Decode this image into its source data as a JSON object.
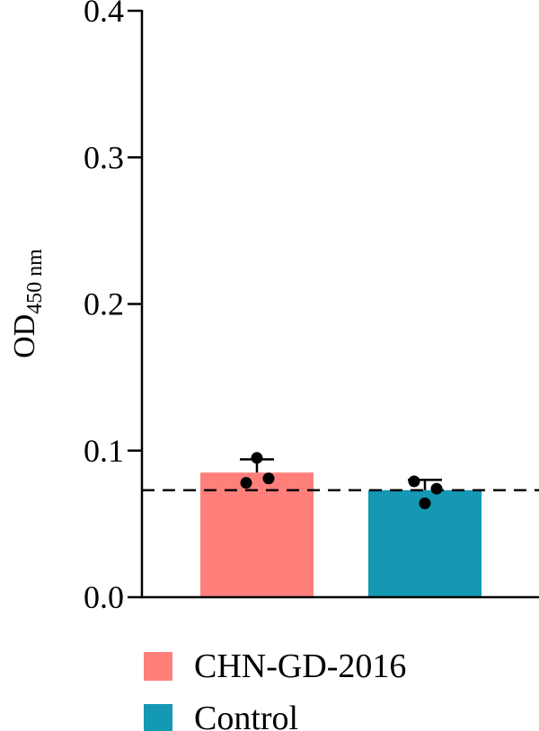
{
  "chart_data": {
    "type": "bar",
    "title": "",
    "xlabel": "",
    "ylabel_main": "OD",
    "ylabel_sub": "450 nm",
    "ylim": [
      0,
      0.4
    ],
    "yticks": [
      0.0,
      0.1,
      0.2,
      0.3,
      0.4
    ],
    "ytick_labels": [
      "0.0",
      "0.1",
      "0.2",
      "0.3",
      "0.4"
    ],
    "categories": [
      "CHN-GD-2016",
      "Control"
    ],
    "values": [
      0.085,
      0.073
    ],
    "error_upper": [
      0.094,
      0.08
    ],
    "points": [
      [
        0.078,
        0.095,
        0.081
      ],
      [
        0.079,
        0.064,
        0.074
      ]
    ],
    "colors": [
      "#FF7F7B",
      "#1498B3"
    ],
    "reference_line": 0.073,
    "legend": {
      "placement": "bottom-left",
      "entries": [
        {
          "label": "CHN-GD-2016",
          "color": "#FF7F7B"
        },
        {
          "label": "Control",
          "color": "#1498B3"
        }
      ]
    }
  }
}
